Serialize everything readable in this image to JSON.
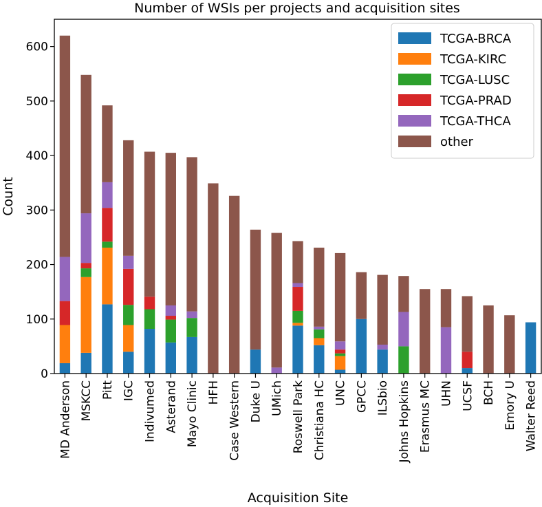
{
  "chart_data": {
    "type": "bar",
    "stacked": true,
    "title": "Number of WSIs per projects and acquisition sites",
    "xlabel": "Acquisition Site",
    "ylabel": "Count",
    "ylim": [
      0,
      650
    ],
    "yticks": [
      0,
      100,
      200,
      300,
      400,
      500,
      600
    ],
    "grid": false,
    "legend_position": "top-right",
    "categories": [
      "MD Anderson",
      "MSKCC",
      "Pitt",
      "IGC",
      "Indivumed",
      "Asterand",
      "Mayo Clinic",
      "HFH",
      "Case Western",
      "Duke U",
      "UMich",
      "Roswell Park",
      "Christiana HC",
      "UNC",
      "GPCC",
      "ILSbio",
      "Johns Hopkins",
      "Erasmus MC",
      "UHN",
      "UCSF",
      "BCH",
      "Emory U",
      "Walter Reed"
    ],
    "series": [
      {
        "name": "TCGA-BRCA",
        "color": "#1f77b4",
        "values": [
          19,
          38,
          127,
          40,
          82,
          57,
          67,
          0,
          0,
          44,
          0,
          88,
          52,
          7,
          100,
          44,
          0,
          0,
          0,
          10,
          0,
          0,
          94
        ]
      },
      {
        "name": "TCGA-KIRC",
        "color": "#ff7f0e",
        "values": [
          70,
          139,
          104,
          49,
          0,
          0,
          0,
          0,
          0,
          0,
          0,
          5,
          13,
          25,
          0,
          0,
          0,
          0,
          0,
          0,
          0,
          0,
          0
        ]
      },
      {
        "name": "TCGA-LUSC",
        "color": "#2ca02c",
        "values": [
          0,
          16,
          11,
          37,
          36,
          42,
          35,
          0,
          0,
          0,
          0,
          22,
          16,
          5,
          0,
          0,
          50,
          0,
          0,
          0,
          0,
          0,
          0
        ]
      },
      {
        "name": "TCGA-PRAD",
        "color": "#d62728",
        "values": [
          44,
          10,
          62,
          66,
          23,
          7,
          0,
          0,
          0,
          0,
          0,
          44,
          0,
          7,
          0,
          0,
          0,
          0,
          0,
          30,
          0,
          0,
          0
        ]
      },
      {
        "name": "TCGA-THCA",
        "color": "#9467bd",
        "values": [
          81,
          91,
          47,
          24,
          0,
          19,
          12,
          0,
          0,
          0,
          11,
          7,
          5,
          15,
          0,
          9,
          63,
          0,
          85,
          0,
          0,
          0,
          0
        ]
      },
      {
        "name": "other",
        "color": "#8c564b",
        "values": [
          406,
          254,
          141,
          212,
          266,
          280,
          283,
          349,
          326,
          220,
          247,
          77,
          145,
          162,
          86,
          128,
          66,
          155,
          70,
          102,
          125,
          107,
          0
        ]
      }
    ]
  }
}
